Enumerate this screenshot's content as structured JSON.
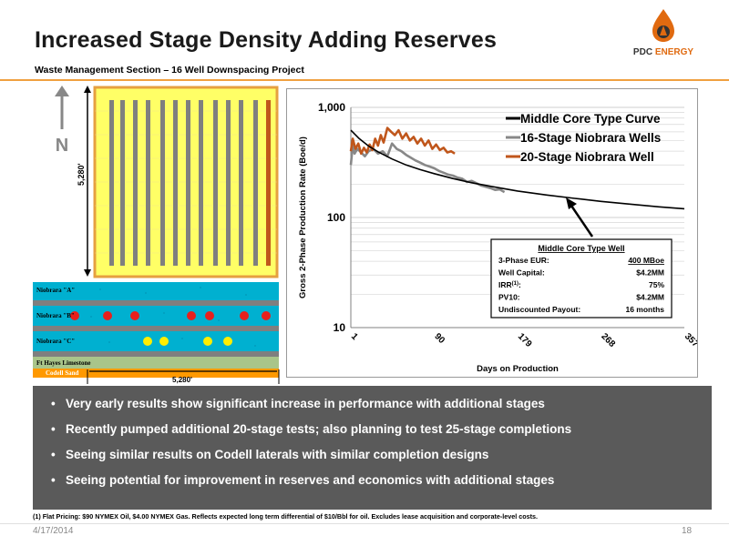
{
  "header": {
    "title": "Increased Stage Density Adding Reserves",
    "subtitle": "Waste Management Section – 16 Well Downspacing Project",
    "logo_text_1": "PDC",
    "logo_text_2": "ENERGY"
  },
  "map": {
    "north_label": "N",
    "dim_vertical": "5,280'",
    "dim_horizontal": "5,280'",
    "layers": [
      "Niobrara \"A\"",
      "Niobrara \"B\"",
      "Niobrara \"C\"",
      "Ft Hayes Limestone",
      "Codell Sand"
    ]
  },
  "chart_data": {
    "type": "line",
    "xlabel": "Days on Production",
    "ylabel": "Gross 2-Phase Production Rate  (Boe/d)",
    "x_ticks": [
      "1",
      "90",
      "179",
      "268",
      "357"
    ],
    "y_ticks": [
      "10",
      "100",
      "1,000"
    ],
    "xlim": [
      1,
      357
    ],
    "ylim": [
      10,
      1000
    ],
    "y_scale": "log",
    "grid": "horizontal minor",
    "legend_position": "top-right",
    "series": [
      {
        "name": "Middle Core Type Curve",
        "color": "#000000",
        "x": [
          1,
          10,
          20,
          30,
          45,
          60,
          75,
          90,
          110,
          130,
          150,
          179,
          210,
          240,
          268,
          300,
          330,
          357
        ],
        "y": [
          620,
          520,
          445,
          395,
          340,
          300,
          272,
          250,
          226,
          207,
          192,
          174,
          160,
          149,
          140,
          132,
          125,
          120
        ]
      },
      {
        "name": "16-Stage Niobrara Wells",
        "color": "#888888",
        "x": [
          1,
          3,
          5,
          8,
          12,
          16,
          20,
          25,
          30,
          35,
          40,
          45,
          50,
          55,
          60,
          65,
          70,
          75,
          80,
          85,
          90,
          95,
          100,
          105,
          110,
          115,
          120,
          125,
          130,
          135,
          140,
          145,
          150,
          155,
          160,
          165
        ],
        "y": [
          300,
          450,
          380,
          420,
          390,
          360,
          400,
          420,
          380,
          400,
          360,
          470,
          420,
          400,
          370,
          350,
          330,
          315,
          300,
          290,
          280,
          265,
          255,
          245,
          240,
          230,
          225,
          210,
          215,
          205,
          195,
          190,
          185,
          178,
          180,
          170
        ]
      },
      {
        "name": "20-Stage Niobrara Well",
        "color": "#c0561b",
        "x": [
          1,
          3,
          6,
          9,
          12,
          15,
          18,
          21,
          24,
          27,
          30,
          33,
          36,
          40,
          44,
          48,
          52,
          56,
          60,
          64,
          68,
          72,
          76,
          80,
          84,
          88,
          92,
          96,
          100,
          104,
          108,
          112
        ],
        "y": [
          400,
          520,
          420,
          470,
          380,
          430,
          390,
          460,
          410,
          520,
          450,
          560,
          480,
          650,
          600,
          560,
          620,
          520,
          580,
          500,
          540,
          470,
          520,
          450,
          500,
          420,
          460,
          410,
          430,
          390,
          400,
          380
        ]
      }
    ]
  },
  "type_well_box": {
    "title": "Middle Core Type Well",
    "rows": [
      {
        "label": "3-Phase EUR:",
        "value": "400 MBoe"
      },
      {
        "label": "Well Capital:",
        "value": "$4.2MM"
      },
      {
        "label": "IRR",
        "sup": "(1)",
        "label_suffix": ":",
        "value": "75%"
      },
      {
        "label": "PV10:",
        "value": "$4.2MM"
      },
      {
        "label": "Undiscounted Payout:",
        "value": "16 months"
      }
    ]
  },
  "bullets": [
    "Very early results show significant increase in performance with additional stages",
    "Recently pumped additional 20-stage tests; also planning to test 25-stage completions",
    "Seeing similar results on Codell laterals with similar completion designs",
    "Seeing potential for improvement in reserves and economics with additional stages"
  ],
  "footer": {
    "footnote": "(1) Flat Pricing: $90 NYMEX Oil, $4.00 NYMEX Gas. Reflects expected long term differential of $10/Bbl for oil. Excludes lease acquisition and corporate-level costs.",
    "date": "4/17/2014",
    "page": "18"
  }
}
